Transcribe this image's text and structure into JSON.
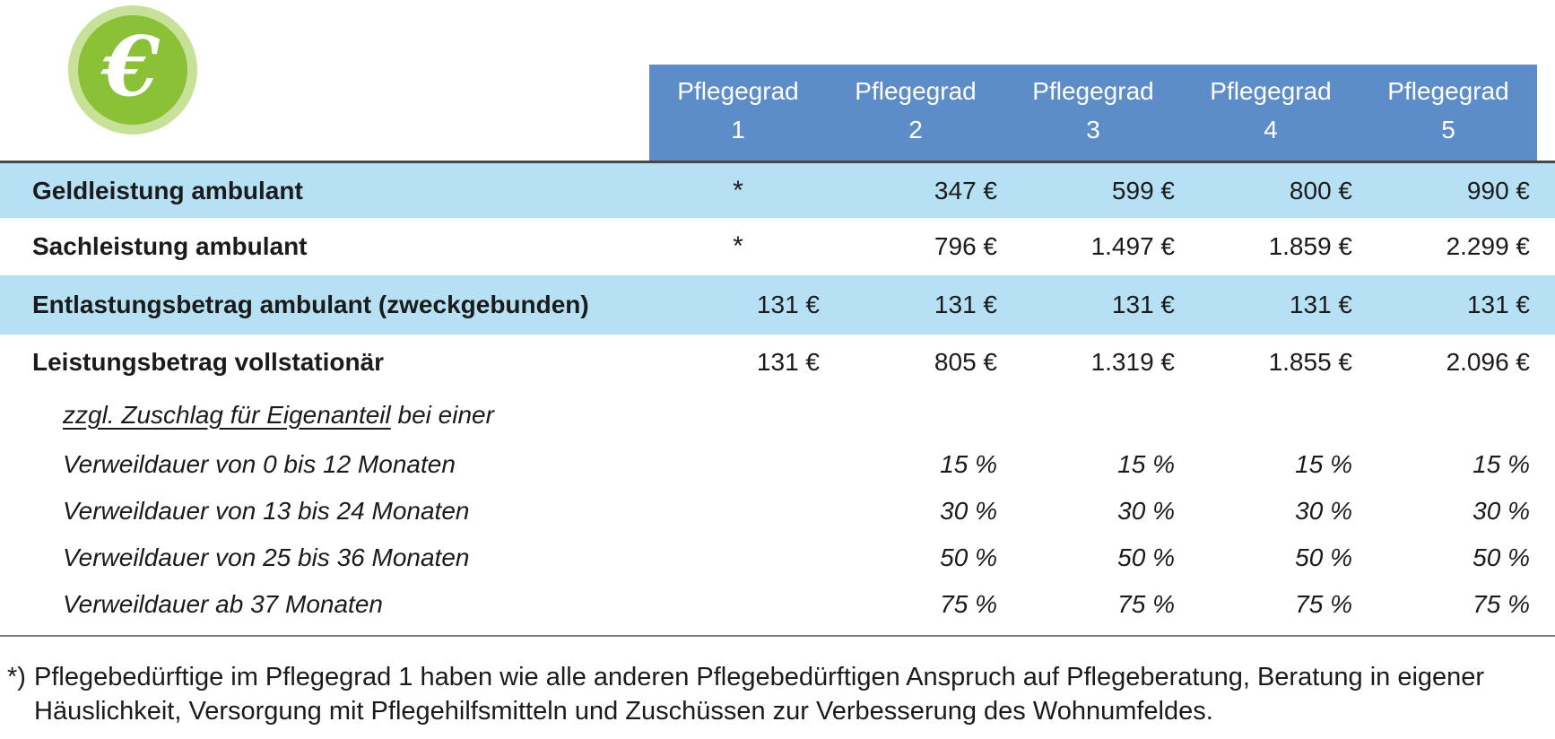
{
  "icon": {
    "symbol": "€"
  },
  "colors": {
    "header_blue": "#5d8dc8",
    "stripe_blue": "#b6e0f3",
    "icon_green": "#8ac136",
    "icon_ring": "#c8e198",
    "line_dark": "#474747",
    "line_gray": "#7d7d7d",
    "ink": "#1b1b1b"
  },
  "table": {
    "column_headers": [
      {
        "line1": "Pflegegrad",
        "line2": "1"
      },
      {
        "line1": "Pflegegrad",
        "line2": "2"
      },
      {
        "line1": "Pflegegrad",
        "line2": "3"
      },
      {
        "line1": "Pflegegrad",
        "line2": "4"
      },
      {
        "line1": "Pflegegrad",
        "line2": "5"
      }
    ],
    "rows": [
      {
        "label": "Geldleistung ambulant",
        "values": [
          "*",
          "347 €",
          "599 €",
          "800 €",
          "990 €"
        ]
      },
      {
        "label": "Sachleistung ambulant",
        "values": [
          "*",
          "796 €",
          "1.497 €",
          "1.859 €",
          "2.299 €"
        ]
      },
      {
        "label": "Entlastungsbetrag ambulant (zweckgebunden)",
        "values": [
          "131 €",
          "131 €",
          "131 €",
          "131 €",
          "131 €"
        ]
      },
      {
        "label": "Leistungsbetrag vollstationär",
        "values": [
          "131 €",
          "805 €",
          "1.319 €",
          "1.855 €",
          "2.096 €"
        ]
      },
      {
        "label_underlined": "zzgl. Zuschlag für Eigenanteil",
        "label_rest": " bei einer",
        "values": [
          "",
          "",
          "",
          "",
          ""
        ]
      },
      {
        "label": "Verweildauer von 0 bis 12 Monaten",
        "values": [
          "",
          "15 %",
          "15 %",
          "15 %",
          "15 %"
        ]
      },
      {
        "label": "Verweildauer von 13 bis 24 Monaten",
        "values": [
          "",
          "30 %",
          "30 %",
          "30 %",
          "30 %"
        ]
      },
      {
        "label": "Verweildauer von 25 bis 36 Monaten",
        "values": [
          "",
          "50 %",
          "50 %",
          "50 %",
          "50 %"
        ]
      },
      {
        "label": "Verweildauer ab 37 Monaten",
        "values": [
          "",
          "75 %",
          "75 %",
          "75 %",
          "75 %"
        ]
      }
    ]
  },
  "footnote": {
    "marker": "*)",
    "text": "Pflegebedürftige im Pflegegrad 1 haben wie alle anderen Pflegebedürftigen Anspruch auf Pflegeberatung, Beratung in eigener Häuslichkeit, Versorgung mit Pflegehilfsmitteln und Zuschüssen zur Verbesserung des Wohnumfeldes."
  }
}
